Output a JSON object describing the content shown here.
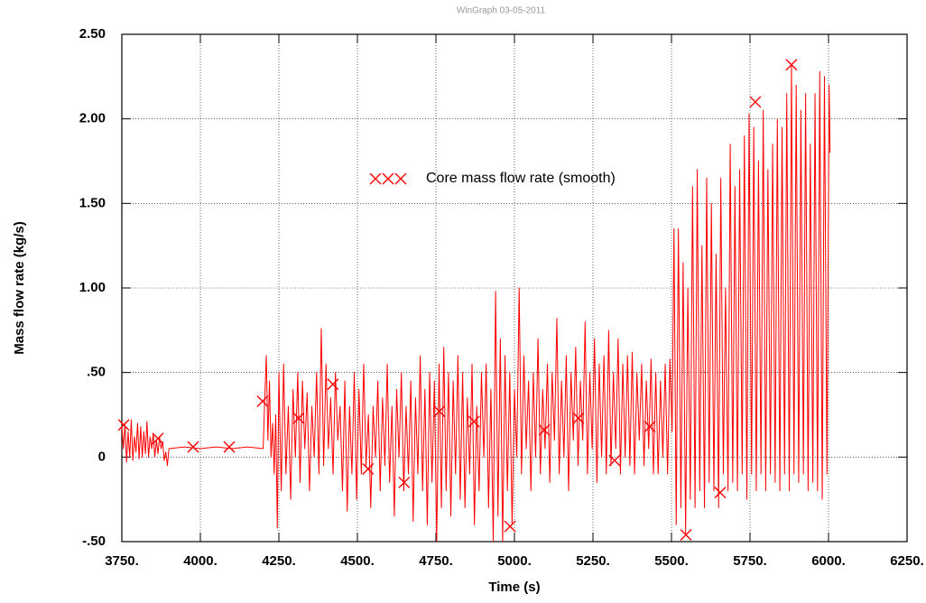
{
  "chart_data": {
    "type": "line",
    "subtitle": "WinGraph 03-05-2011",
    "x_label": "Time (s)",
    "y_label": "Mass flow rate (kg/s)",
    "xlim": [
      3750,
      6250
    ],
    "ylim": [
      -0.5,
      2.5
    ],
    "xticks": [
      {
        "value": 3750,
        "label": "3750."
      },
      {
        "value": 4000,
        "label": "4000."
      },
      {
        "value": 4250,
        "label": "4250."
      },
      {
        "value": 4500,
        "label": "4500."
      },
      {
        "value": 4750,
        "label": "4750."
      },
      {
        "value": 5000,
        "label": "5000."
      },
      {
        "value": 5250,
        "label": "5250."
      },
      {
        "value": 5500,
        "label": "5500."
      },
      {
        "value": 5750,
        "label": "5750."
      },
      {
        "value": 6000,
        "label": "6000."
      },
      {
        "value": 6250,
        "label": "6250."
      }
    ],
    "yticks": [
      {
        "value": -0.5,
        "label": "-.50"
      },
      0,
      {
        "value": 0.5,
        "label": ".50"
      },
      {
        "value": 1,
        "label": "1.00"
      },
      {
        "value": 1.5,
        "label": "1.50"
      },
      {
        "value": 2,
        "label": "2.00"
      },
      {
        "value": 2.5,
        "label": "2.50"
      }
    ],
    "grid": true,
    "series": [
      {
        "name": "Core mass flow rate (smooth)",
        "color": "#ff0000",
        "x": [
          3750,
          3755,
          3760,
          3765,
          3770,
          3775,
          3780,
          3785,
          3790,
          3795,
          3800,
          3805,
          3810,
          3815,
          3820,
          3825,
          3830,
          3835,
          3840,
          3845,
          3850,
          3855,
          3860,
          3865,
          3870,
          3875,
          3880,
          3885,
          3890,
          3895,
          3900,
          3950,
          4000,
          4050,
          4100,
          4150,
          4200,
          4205,
          4210,
          4215,
          4220,
          4225,
          4230,
          4235,
          4240,
          4245,
          4250,
          4257.5,
          4265,
          4272.5,
          4280,
          4287.5,
          4295,
          4302.5,
          4310,
          4317.5,
          4325,
          4332.5,
          4340,
          4347.5,
          4355,
          4362.5,
          4370,
          4377.5,
          4385,
          4392.5,
          4400,
          4407.5,
          4415,
          4422.5,
          4430,
          4437.5,
          4445,
          4452.5,
          4460,
          4467.5,
          4475,
          4482.5,
          4490,
          4497.5,
          4505,
          4512.5,
          4520,
          4527.5,
          4535,
          4542.5,
          4550,
          4557.5,
          4565,
          4572.5,
          4580,
          4587.5,
          4595,
          4602.5,
          4610,
          4617.5,
          4625,
          4632.5,
          4640,
          4647.5,
          4655,
          4662.5,
          4670,
          4677.5,
          4685,
          4692.5,
          4700,
          4707.5,
          4715,
          4722.5,
          4730,
          4737.5,
          4745,
          4752.5,
          4760,
          4767.5,
          4775,
          4782.5,
          4790,
          4797.5,
          4805,
          4812.5,
          4820,
          4827.5,
          4835,
          4842.5,
          4850,
          4857.5,
          4865,
          4872.5,
          4880,
          4887.5,
          4895,
          4902.5,
          4910,
          4917.5,
          4925,
          4932.5,
          4940,
          4947.5,
          4955,
          4962.5,
          4970,
          4977.5,
          4985,
          4992.5,
          5000,
          5007.5,
          5015,
          5022.5,
          5030,
          5037.5,
          5045,
          5052.5,
          5060,
          5067.5,
          5075,
          5082.5,
          5090,
          5097.5,
          5105,
          5112.5,
          5120,
          5127.5,
          5135,
          5142.5,
          5150,
          5157.5,
          5165,
          5172.5,
          5180,
          5187.5,
          5195,
          5202.5,
          5210,
          5217.5,
          5225,
          5232.5,
          5240,
          5247.5,
          5255,
          5262.5,
          5270,
          5277.5,
          5285,
          5292.5,
          5300,
          5307.5,
          5315,
          5322.5,
          5330,
          5337.5,
          5345,
          5352.5,
          5360,
          5367.5,
          5375,
          5382.5,
          5390,
          5397.5,
          5405,
          5412.5,
          5420,
          5427.5,
          5435,
          5442.5,
          5450,
          5457.5,
          5465,
          5472.5,
          5480,
          5487.5,
          5495,
          5502,
          5508,
          5515,
          5522,
          5530,
          5537,
          5545,
          5552,
          5560,
          5567,
          5575,
          5582,
          5590,
          5597,
          5605,
          5612,
          5620,
          5627,
          5635,
          5642,
          5650,
          5657,
          5665,
          5672,
          5680,
          5687,
          5695,
          5702,
          5710,
          5717,
          5725,
          5732,
          5740,
          5747,
          5755,
          5762,
          5770,
          5777,
          5785,
          5792,
          5800,
          5807,
          5815,
          5822,
          5830,
          5837,
          5845,
          5852,
          5860,
          5867,
          5875,
          5882,
          5890,
          5897,
          5905,
          5912,
          5920,
          5927,
          5935,
          5942,
          5950,
          5957,
          5965,
          5972,
          5980,
          5987,
          5995,
          6002,
          6005
        ],
        "values": [
          0.18,
          0.05,
          0.2,
          -0.03,
          0.15,
          0,
          0.22,
          -0.02,
          0.12,
          0.03,
          0.2,
          -0.01,
          0.18,
          0,
          0.15,
          0.02,
          0.21,
          0,
          0.12,
          0.05,
          0.14,
          0,
          0.1,
          0.02,
          0.12,
          0.05,
          0.09,
          -0.02,
          0.03,
          -0.05,
          0.05,
          0.06,
          0.05,
          0.06,
          0.05,
          0.06,
          0.05,
          0.35,
          0.6,
          0.1,
          0.45,
          0,
          0.2,
          -0.1,
          0.25,
          -0.42,
          0.5,
          -0.2,
          0.55,
          -0.1,
          0.3,
          -0.25,
          0.4,
          0,
          0.5,
          -0.15,
          0.45,
          0.05,
          0.38,
          -0.2,
          0.3,
          0,
          0.5,
          -0.1,
          0.76,
          -0.05,
          0.55,
          0.05,
          0.35,
          -0.1,
          0.5,
          0.1,
          0.3,
          -0.2,
          0.45,
          -0.32,
          0.3,
          -0.1,
          0.5,
          -0.25,
          0.4,
          -0.1,
          0.55,
          -0.05,
          0.25,
          -0.3,
          0.3,
          0,
          0.45,
          -0.2,
          0.35,
          -0.05,
          0.55,
          -0.15,
          0.3,
          -0.35,
          0.4,
          0,
          0.5,
          -0.2,
          0.3,
          -0.1,
          0.45,
          -0.38,
          0.35,
          -0.1,
          0.6,
          -0.2,
          0.4,
          -0.4,
          0.5,
          -0.15,
          0.45,
          -0.5,
          0.55,
          -0.3,
          0.65,
          -0.2,
          0.5,
          -0.35,
          0.45,
          -0.1,
          0.6,
          -0.25,
          0.5,
          -0.3,
          0.35,
          -0.1,
          0.55,
          -0.4,
          0.3,
          -0.2,
          0.5,
          0,
          0.55,
          -0.3,
          0.4,
          -0.5,
          0.98,
          -0.35,
          0.7,
          -0.5,
          0.6,
          -0.2,
          0.5,
          -0.4,
          0.4,
          0,
          1.0,
          -0.1,
          0.6,
          0.05,
          0.45,
          -0.2,
          0.5,
          0,
          0.7,
          -0.1,
          0.4,
          0.05,
          0.55,
          -0.15,
          0.5,
          0.1,
          0.82,
          -0.1,
          0.45,
          0,
          0.6,
          -0.2,
          0.5,
          0.1,
          0.65,
          -0.05,
          0.45,
          0.1,
          0.8,
          -0.1,
          0.5,
          0.05,
          0.7,
          -0.15,
          0.55,
          0,
          0.6,
          -0.1,
          0.75,
          -0.05,
          0.5,
          0.05,
          0.7,
          -0.1,
          0.55,
          0,
          0.6,
          -0.05,
          0.62,
          -0.1,
          0.5,
          0.1,
          0.55,
          -0.05,
          0.45,
          0.05,
          0.58,
          -0.1,
          0.5,
          -0.1,
          0.45,
          0,
          0.55,
          -0.1,
          0.58,
          0.15,
          1.35,
          -0.4,
          1.35,
          -0.3,
          1.15,
          -0.45,
          1.0,
          -0.25,
          1.6,
          -0.3,
          1.7,
          -0.2,
          1.25,
          -0.3,
          1.65,
          -0.15,
          1.5,
          -0.2,
          1.2,
          -0.3,
          1.65,
          -0.1,
          1.0,
          -0.2,
          1.85,
          -0.15,
          1.6,
          -0.2,
          1.7,
          -0.1,
          1.9,
          -0.25,
          2.03,
          -0.1,
          1.95,
          -0.2,
          1.75,
          -0.1,
          2.05,
          -0.2,
          1.7,
          -0.1,
          1.85,
          -0.15,
          2.0,
          -0.2,
          1.95,
          -0.1,
          2.15,
          -0.2,
          2.32,
          -0.1,
          2.2,
          -0.15,
          2.05,
          -0.1,
          2.15,
          -0.2,
          1.85,
          -0.15,
          2.15,
          -0.2,
          2.28,
          -0.25,
          2.25,
          -0.1,
          2.2,
          1.8
        ],
        "markers": {
          "x": [
            3756,
            3865,
            3977,
            4092,
            4198,
            4313,
            4422,
            4534,
            4649,
            4761,
            4871,
            4986,
            5095,
            5204,
            5319,
            5431,
            5546,
            5655,
            5767,
            5882
          ],
          "values": [
            0.19,
            0.11,
            0.06,
            0.06,
            0.33,
            0.23,
            0.43,
            -0.07,
            -0.15,
            0.27,
            0.21,
            -0.41,
            0.16,
            0.23,
            -0.02,
            0.18,
            -0.46,
            -0.21,
            2.1,
            2.32
          ]
        }
      }
    ]
  }
}
